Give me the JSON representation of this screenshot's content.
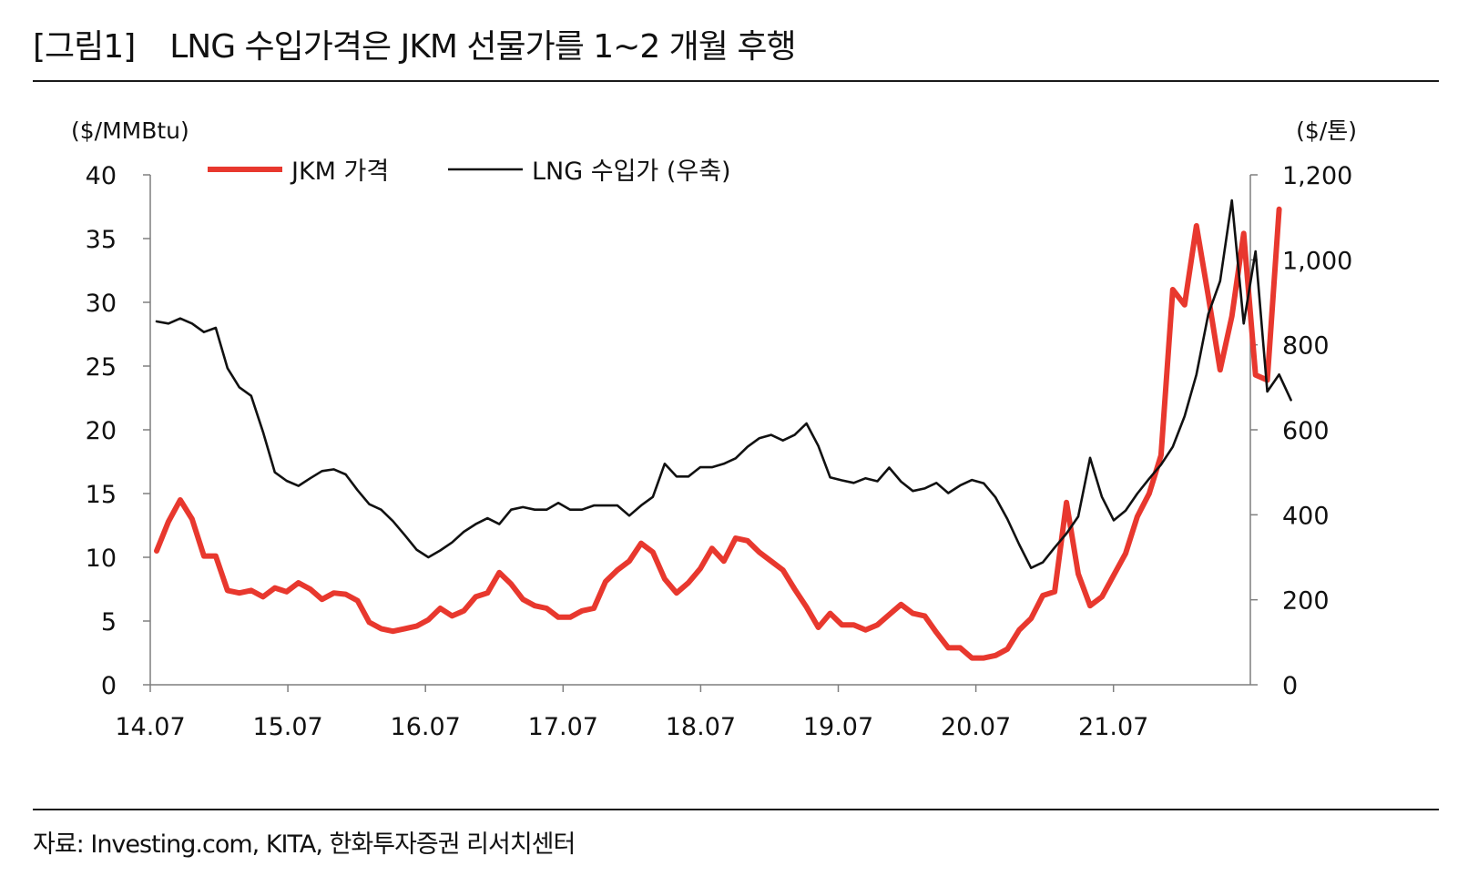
{
  "figure": {
    "tag": "[그림1]",
    "title": "LNG 수입가격은 JKM 선물가를 1~2 개월 후행",
    "source": "자료: Investing.com, KITA, 한화투자증권 리서치센터"
  },
  "chart_data": {
    "type": "line",
    "title": "LNG 수입가격은 JKM 선물가를 1~2 개월 후행",
    "left_unit": "($/MMBtu)",
    "right_unit": "($/톤)",
    "ylim_left": [
      0,
      40
    ],
    "ylim_right": [
      0,
      1200
    ],
    "left_ticks": [
      "0",
      "5",
      "10",
      "15",
      "20",
      "25",
      "30",
      "35",
      "40"
    ],
    "right_ticks": [
      "0",
      "200",
      "400",
      "600",
      "800",
      "1,000",
      "1,200"
    ],
    "x_ticks": [
      "14.07",
      "15.07",
      "16.07",
      "17.07",
      "18.07",
      "19.07",
      "20.07",
      "21.07"
    ],
    "grid": false,
    "legend_position": "top",
    "colors": {
      "jkm": "#e8382e",
      "lng": "#111111",
      "axis": "#7f7f7f"
    },
    "series": [
      {
        "name": "JKM 가격",
        "axis": "left",
        "start": "14.07",
        "frequency": "monthly",
        "values": [
          10.5,
          12.8,
          14.5,
          13.0,
          10.1,
          10.1,
          7.4,
          7.2,
          7.4,
          6.9,
          7.6,
          7.3,
          8.0,
          7.5,
          6.7,
          7.2,
          7.1,
          6.6,
          4.9,
          4.4,
          4.2,
          4.4,
          4.6,
          5.1,
          6.0,
          5.4,
          5.8,
          6.9,
          7.2,
          8.8,
          7.9,
          6.7,
          6.2,
          6.0,
          5.3,
          5.3,
          5.8,
          6.0,
          8.1,
          9.0,
          9.7,
          11.1,
          10.4,
          8.3,
          7.2,
          8.0,
          9.1,
          10.7,
          9.7,
          11.5,
          11.3,
          10.4,
          9.7,
          9.0,
          7.5,
          6.1,
          4.5,
          5.6,
          4.7,
          4.7,
          4.3,
          4.7,
          5.5,
          6.3,
          5.6,
          5.4,
          4.1,
          2.9,
          2.9,
          2.1,
          2.1,
          2.3,
          2.8,
          4.3,
          5.2,
          7.0,
          7.3,
          14.3,
          8.7,
          6.2,
          6.9,
          8.6,
          10.3,
          13.2,
          15.0,
          18.0,
          31.0,
          29.8,
          36.0,
          30.5,
          24.7,
          28.9,
          35.4,
          24.3,
          23.9,
          37.3
        ]
      },
      {
        "name": "LNG 수입가  (우축)",
        "axis": "right",
        "start": "14.07",
        "frequency": "monthly",
        "values": [
          855,
          850,
          862,
          850,
          830,
          840,
          745,
          700,
          680,
          595,
          500,
          480,
          468,
          486,
          503,
          507,
          495,
          458,
          425,
          412,
          385,
          352,
          318,
          300,
          316,
          335,
          360,
          378,
          392,
          378,
          412,
          418,
          412,
          412,
          428,
          412,
          412,
          422,
          422,
          422,
          398,
          422,
          442,
          520,
          490,
          490,
          512,
          512,
          520,
          533,
          560,
          580,
          588,
          575,
          588,
          615,
          562,
          488,
          481,
          475,
          486,
          479,
          511,
          478,
          456,
          462,
          475,
          451,
          469,
          482,
          474,
          441,
          390,
          330,
          275,
          288,
          323,
          356,
          396,
          534,
          442,
          387,
          410,
          450,
          485,
          518,
          560,
          632,
          730,
          872,
          950,
          1140,
          850,
          1020,
          690,
          730,
          670
        ]
      }
    ]
  }
}
